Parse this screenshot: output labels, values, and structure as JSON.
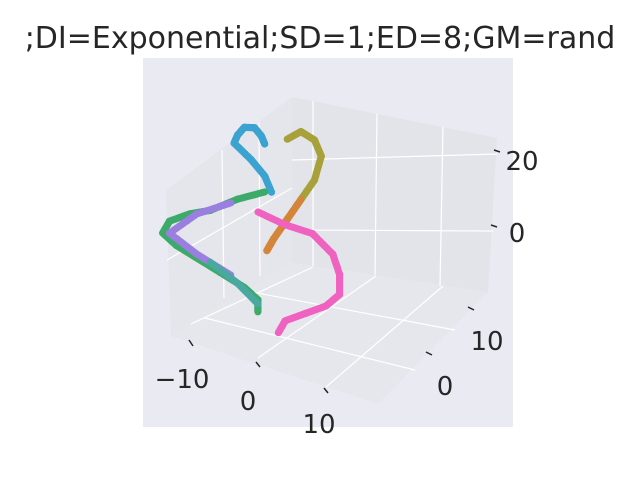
{
  "chart_data": {
    "type": "scatter3d",
    "title": ";DI=Exponential;SD=1;ED=8;GM=rand",
    "xlabel": "",
    "ylabel": "",
    "zlabel": "",
    "x_ticks": [
      "−10",
      "0",
      "10"
    ],
    "y_ticks": [
      "10",
      "0"
    ],
    "z_ticks": [
      "20",
      "0"
    ],
    "xlim": [
      -15,
      15
    ],
    "ylim": [
      -10,
      15
    ],
    "zlim": [
      -20,
      25
    ],
    "grid": true,
    "legend": "none",
    "series": [
      {
        "color": "#3ba3d0",
        "points": [
          [
            -1,
            3,
            20
          ],
          [
            -1.5,
            3,
            22
          ],
          [
            -2.5,
            3,
            24
          ],
          [
            -4,
            3,
            24
          ],
          [
            -5,
            3,
            22
          ],
          [
            -5.5,
            3,
            20
          ],
          [
            -3,
            3,
            16
          ],
          [
            -1,
            3,
            12
          ],
          [
            0,
            3,
            8
          ]
        ]
      },
      {
        "color": "#a8a13a",
        "points": [
          [
            1,
            5,
            20
          ],
          [
            3,
            5,
            22
          ],
          [
            5,
            5,
            20
          ],
          [
            6,
            5,
            16
          ],
          [
            5,
            5,
            10
          ],
          [
            3,
            5,
            5
          ],
          [
            1,
            5,
            0
          ],
          [
            -1,
            5,
            -5
          ],
          [
            -2,
            5,
            -8
          ]
        ]
      },
      {
        "color": "#d4853a",
        "points": [
          [
            3,
            5,
            5
          ],
          [
            1,
            5,
            0
          ],
          [
            -1,
            5,
            -5
          ],
          [
            -2,
            5,
            -8
          ]
        ]
      },
      {
        "color": "#f062c0",
        "points": [
          [
            0,
            0,
            5
          ],
          [
            4,
            0,
            2
          ],
          [
            8,
            0,
            0
          ],
          [
            11,
            0,
            -5
          ],
          [
            12,
            0,
            -10
          ],
          [
            12,
            0,
            -15
          ],
          [
            10,
            0,
            -18
          ],
          [
            7,
            0,
            -20
          ],
          [
            4,
            0,
            -22
          ],
          [
            3,
            0,
            -25
          ]
        ]
      },
      {
        "color": "#3daa6a",
        "points": [
          [
            -1,
            3,
            8
          ],
          [
            -5,
            3,
            6
          ],
          [
            -9,
            3,
            3
          ],
          [
            -12,
            3,
            2
          ],
          [
            -15,
            3,
            0
          ],
          [
            -16,
            3,
            -3
          ],
          [
            -14,
            3,
            -6
          ],
          [
            -11,
            3,
            -9
          ],
          [
            -7,
            3,
            -13
          ],
          [
            -4,
            3,
            -16
          ],
          [
            -2,
            3,
            -19
          ],
          [
            -2,
            3,
            -22
          ]
        ]
      },
      {
        "color": "#9b7fe0",
        "points": [
          [
            -6,
            3,
            5
          ],
          [
            -11,
            3,
            2
          ],
          [
            -15,
            3,
            -3
          ],
          [
            -11,
            3,
            -8
          ],
          [
            -6,
            3,
            -13
          ]
        ]
      },
      {
        "color": "#4aa8a0",
        "points": [
          [
            -9,
            3,
            -10
          ],
          [
            -5,
            3,
            -15
          ],
          [
            -2,
            3,
            -20
          ]
        ]
      }
    ]
  }
}
